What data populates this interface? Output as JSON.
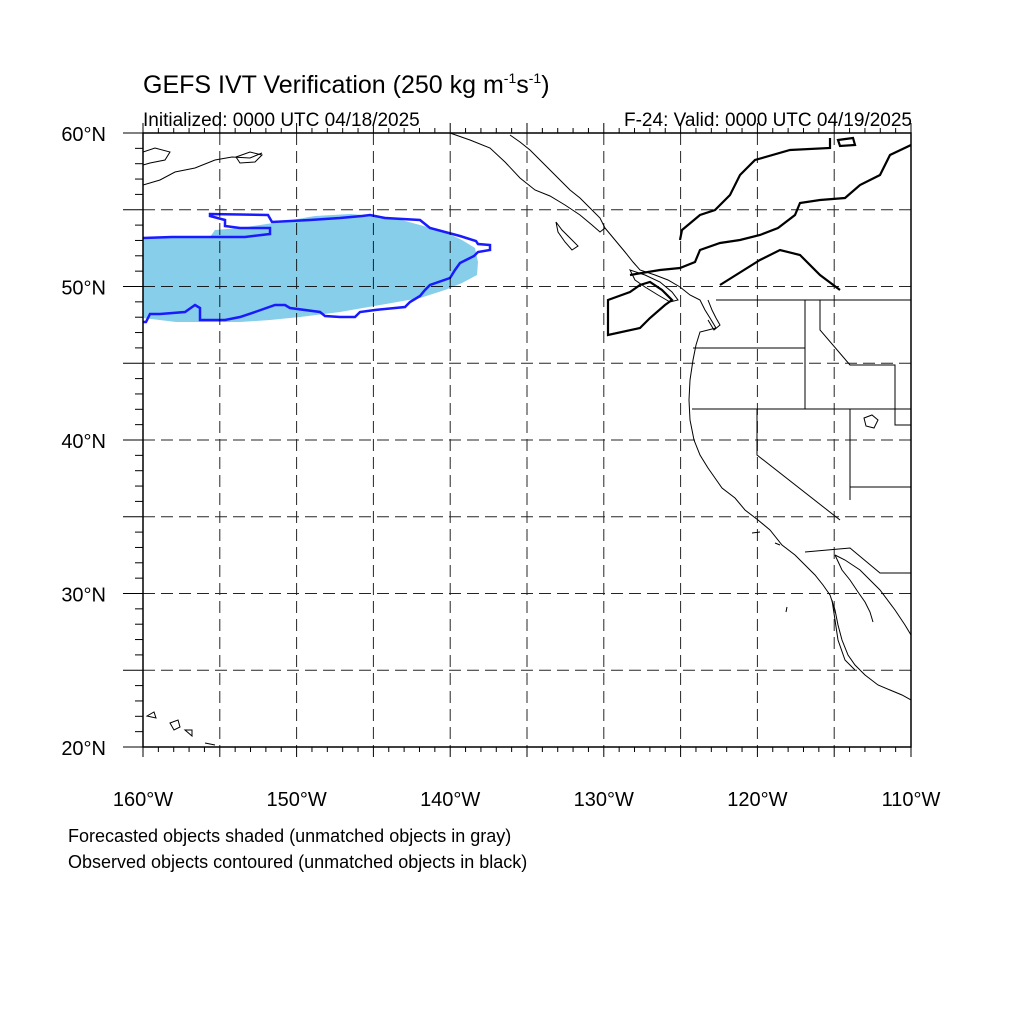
{
  "title": {
    "main": "GEFS IVT Verification (250 kg m",
    "sup1": "-1",
    "mid": "s",
    "sup2": "-1",
    "end": ")"
  },
  "initialized": "Initialized: 0000 UTC 04/18/2025",
  "valid": "F-24: Valid: 0000 UTC 04/19/2025",
  "map": {
    "lon_range": [
      -160,
      -110
    ],
    "lat_range": [
      20,
      60
    ],
    "lon_labels": [
      {
        "lon": -160,
        "text": "160°W"
      },
      {
        "lon": -150,
        "text": "150°W"
      },
      {
        "lon": -140,
        "text": "140°W"
      },
      {
        "lon": -130,
        "text": "130°W"
      },
      {
        "lon": -120,
        "text": "120°W"
      },
      {
        "lon": -110,
        "text": "110°W"
      }
    ],
    "lat_labels": [
      {
        "lat": 20,
        "text": "20°N"
      },
      {
        "lat": 30,
        "text": "30°N"
      },
      {
        "lat": 40,
        "text": "40°N"
      },
      {
        "lat": 50,
        "text": "50°N"
      },
      {
        "lat": 60,
        "text": "60°N"
      }
    ],
    "grid_lons": [
      -155,
      -150,
      -145,
      -140,
      -135,
      -130,
      -125,
      -120,
      -115
    ],
    "grid_lats": [
      25,
      30,
      35,
      40,
      45,
      50,
      55
    ],
    "grid": true,
    "forecast_color": "#87ceeb",
    "observed_color": "#1a1aff"
  },
  "footnotes": [
    "Forecasted objects shaded (unmatched objects in gray)",
    "Observed objects contoured (unmatched objects in black)"
  ]
}
